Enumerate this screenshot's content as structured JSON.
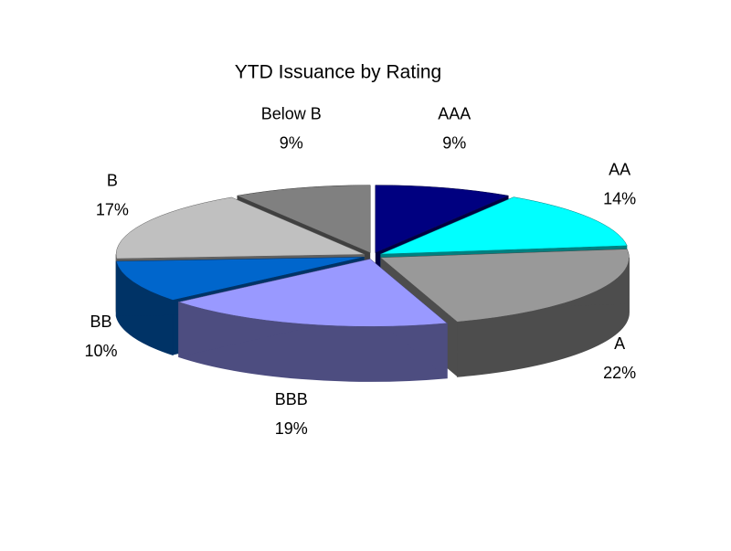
{
  "chart_data": {
    "type": "pie",
    "title": "YTD Issuance by Rating",
    "categories": [
      "AAA",
      "AA",
      "A",
      "BBB",
      "BB",
      "B",
      "Below B"
    ],
    "values": [
      9,
      14,
      22,
      19,
      10,
      17,
      9
    ],
    "value_labels": [
      "9%",
      "14%",
      "22%",
      "19%",
      "10%",
      "17%",
      "9%"
    ],
    "colors": [
      "#000080",
      "#00ffff",
      "#999999",
      "#9999ff",
      "#0066cc",
      "#c0c0c0",
      "#808080"
    ]
  }
}
